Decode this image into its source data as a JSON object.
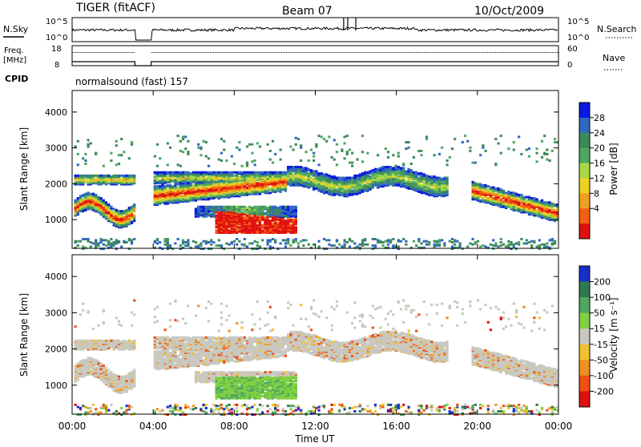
{
  "header": {
    "station": "TIGER (fitACF)",
    "beam": "Beam 07",
    "date": "10/Oct/2009"
  },
  "aux_panels": {
    "nsky_label": "N.Sky",
    "nsearch_label": "N.Search",
    "nsky_ticks": [
      "10^5",
      "10^0"
    ],
    "nsearch_ticks": [
      "10^5",
      "10^0"
    ],
    "freq_label_1": "Freq.",
    "freq_label_2": "[MHz]",
    "freq_ticks": [
      "18",
      "8"
    ],
    "nave_label": "Nave",
    "nave_ticks": [
      "60",
      "0"
    ],
    "cpid_label": "CPID",
    "cpid_value": "normalsound (fast) 157"
  },
  "chart_data": [
    {
      "type": "heatmap",
      "title": "",
      "ylabel": "Slant Range [km]",
      "ylim": [
        200,
        4600
      ],
      "yticks": [
        1000,
        2000,
        3000,
        4000
      ],
      "ytick_labels": [
        "1000",
        "2000",
        "3000",
        "4000"
      ],
      "colorbar": {
        "label": "Power [dB]",
        "ticks": [
          4,
          8,
          12,
          16,
          20,
          24,
          28
        ],
        "tick_labels": [
          "4",
          "8",
          "12",
          "16",
          "20",
          "24",
          "28"
        ],
        "colors": [
          "#0a18e0",
          "#2f68c0",
          "#3c8a5a",
          "#4ea860",
          "#a8d848",
          "#f0d020",
          "#f0a020",
          "#f06010",
          "#e01010"
        ]
      },
      "data_gap_hours": [
        3.1,
        3.9
      ]
    },
    {
      "type": "heatmap",
      "title": "",
      "ylabel": "Slant Range [km]",
      "xlabel": "Time UT",
      "ylim": [
        200,
        4600
      ],
      "yticks": [
        1000,
        2000,
        3000,
        4000
      ],
      "ytick_labels": [
        "1000",
        "2000",
        "3000",
        "4000"
      ],
      "xticks_hours": [
        0,
        4,
        8,
        12,
        16,
        20,
        24
      ],
      "xtick_labels": [
        "00:00",
        "04:00",
        "08:00",
        "12:00",
        "16:00",
        "20:00",
        "00:00"
      ],
      "colorbar": {
        "label": "Velocity [m s⁻¹]",
        "ticks": [
          200,
          100,
          50,
          15,
          -15,
          -50,
          -100,
          -200
        ],
        "tick_labels": [
          "200",
          "100",
          "50",
          "15",
          "-15",
          "-50",
          "-100",
          "-200"
        ],
        "colors": [
          "#1830c8",
          "#2f7a50",
          "#4ea860",
          "#80d040",
          "#c8c8c0",
          "#f0c030",
          "#f09020",
          "#f05010",
          "#e01010"
        ]
      },
      "data_gap_hours": [
        3.1,
        3.9
      ]
    }
  ]
}
